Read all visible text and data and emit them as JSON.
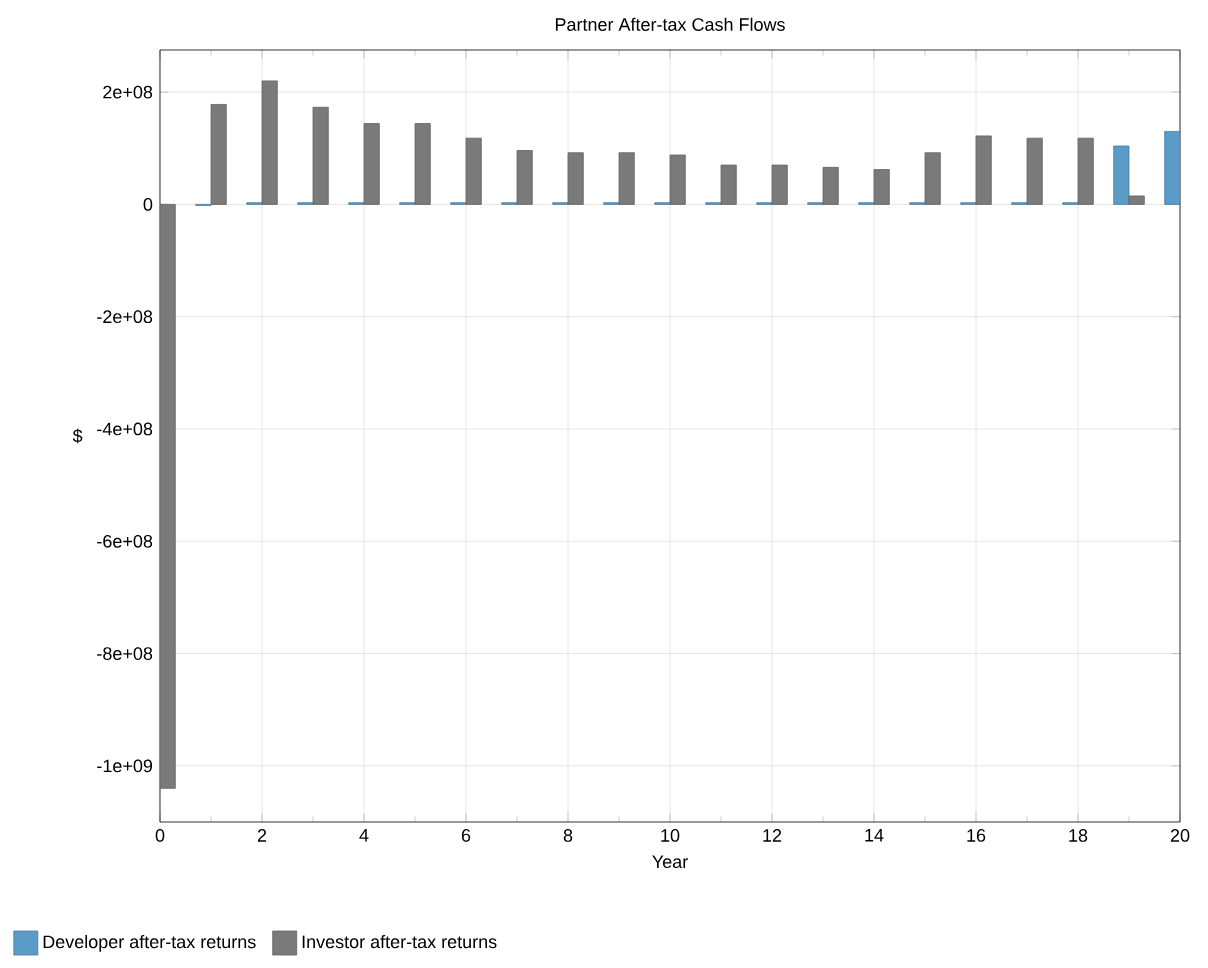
{
  "chart_data": {
    "type": "bar",
    "title": "Partner After-tax Cash Flows",
    "xlabel": "Year",
    "ylabel": "$",
    "x": [
      0,
      1,
      2,
      3,
      4,
      5,
      6,
      7,
      8,
      9,
      10,
      11,
      12,
      13,
      14,
      15,
      16,
      17,
      18,
      19,
      20
    ],
    "series": [
      {
        "name": "Developer after-tax returns",
        "color": "#5b9bc8",
        "values": [
          null,
          -2000000,
          3000000,
          3000000,
          3000000,
          3000000,
          3000000,
          3000000,
          3000000,
          3000000,
          3000000,
          3000000,
          3000000,
          3000000,
          3000000,
          3000000,
          3000000,
          3000000,
          3000000,
          104000000,
          130000000
        ]
      },
      {
        "name": "Investor after-tax returns",
        "color": "#7a7a7a",
        "values": [
          -1040000000,
          178000000,
          220000000,
          173000000,
          144000000,
          144000000,
          118000000,
          96000000,
          92000000,
          92000000,
          88000000,
          70000000,
          70000000,
          66000000,
          62000000,
          92000000,
          122000000,
          118000000,
          118000000,
          15000000,
          null
        ]
      }
    ],
    "xlim": [
      0,
      20
    ],
    "xticks": [
      0,
      2,
      4,
      6,
      8,
      10,
      12,
      14,
      16,
      18,
      20
    ],
    "ylim": [
      -1100000000,
      275000000
    ],
    "yticks": [
      {
        "value": -1000000000,
        "label": "-1e+09"
      },
      {
        "value": -800000000,
        "label": "-8e+08"
      },
      {
        "value": -600000000,
        "label": "-6e+08"
      },
      {
        "value": -400000000,
        "label": "-4e+08"
      },
      {
        "value": -200000000,
        "label": "-2e+08"
      },
      0,
      {
        "value": 200000000,
        "label": "2e+08"
      }
    ],
    "grid": true,
    "legend": "bottom left"
  }
}
